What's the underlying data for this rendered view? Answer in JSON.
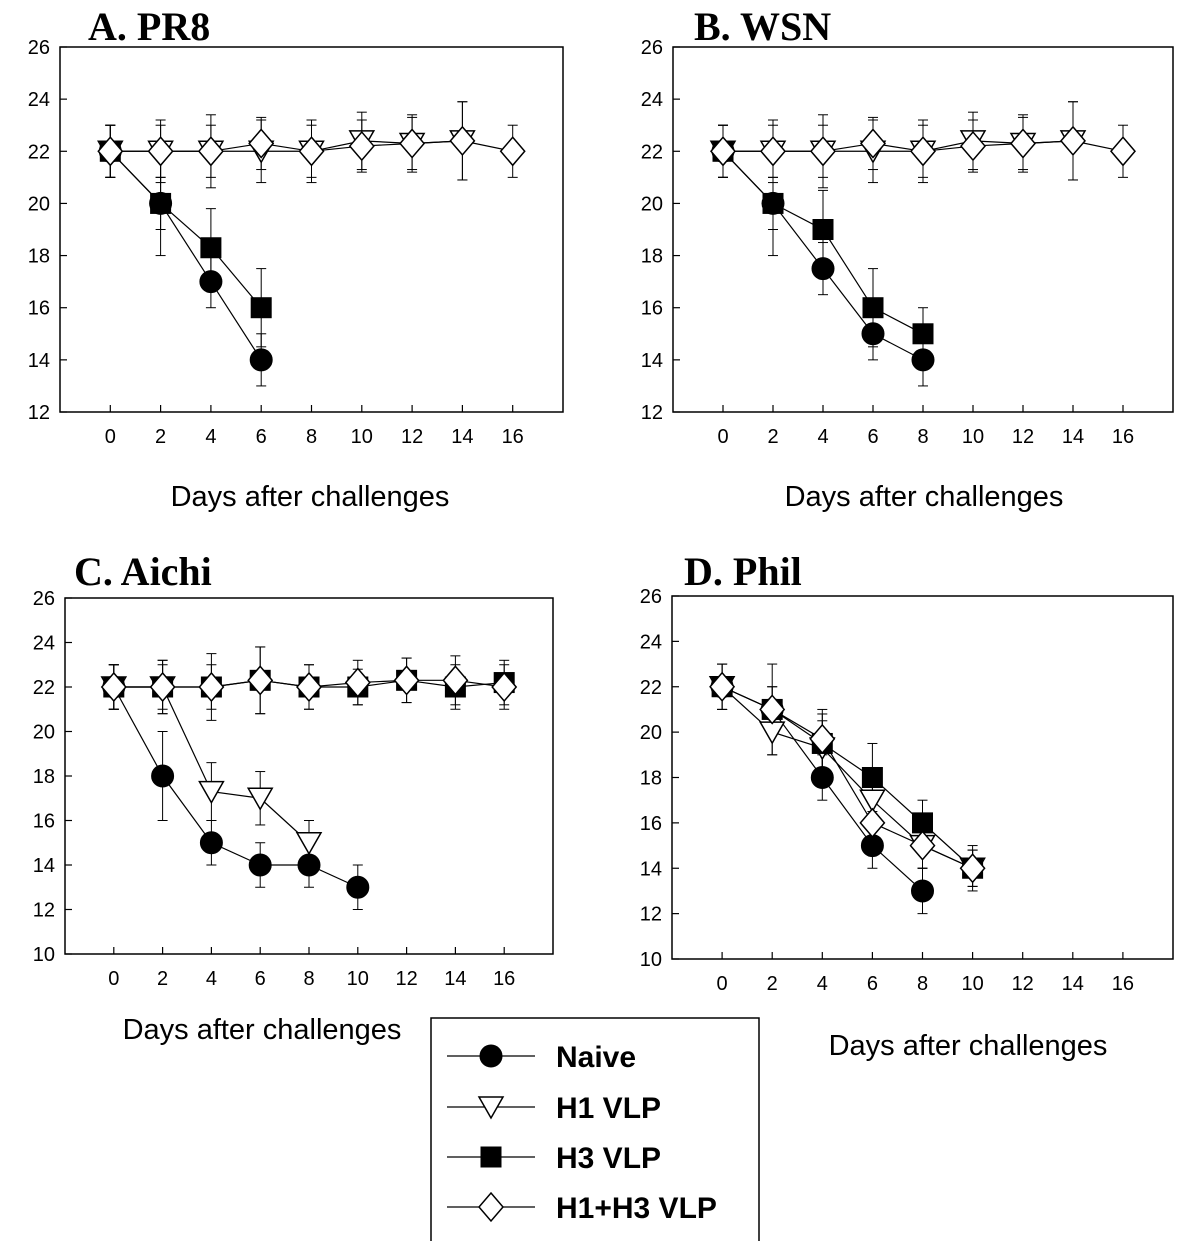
{
  "chart_data": [
    {
      "type": "line",
      "title": "A. PR8",
      "xlabel": "Days after challenges",
      "ylabel": "",
      "x_ticks": [
        0,
        2,
        4,
        6,
        8,
        10,
        12,
        14,
        16
      ],
      "y_ticks": [
        12,
        14,
        16,
        18,
        20,
        22,
        24,
        26
      ],
      "xlim": [
        -2,
        18
      ],
      "ylim": [
        12,
        26
      ],
      "series": [
        {
          "name": "Naive",
          "marker": "circle",
          "x": [
            0,
            2,
            4,
            6
          ],
          "y": [
            22,
            20,
            17,
            14
          ],
          "err": [
            1,
            2,
            1,
            1
          ]
        },
        {
          "name": "H1 VLP",
          "marker": "triangle-down",
          "x": [
            0,
            2,
            4,
            6,
            8,
            10,
            12,
            14
          ],
          "y": [
            22,
            22,
            22,
            22,
            22,
            22.4,
            22.3,
            22.4
          ],
          "err": [
            1,
            1.2,
            1.4,
            1.2,
            1.2,
            1.1,
            1.1,
            1.5
          ]
        },
        {
          "name": "H3 VLP",
          "marker": "square",
          "x": [
            0,
            2,
            4,
            6
          ],
          "y": [
            22,
            20,
            18.3,
            16
          ],
          "err": [
            1,
            1,
            1.5,
            1.5
          ]
        },
        {
          "name": "H1+H3 VLP",
          "marker": "diamond",
          "x": [
            0,
            2,
            4,
            6,
            8,
            10,
            12,
            14,
            16
          ],
          "y": [
            22,
            22,
            22,
            22.3,
            22,
            22.2,
            22.3,
            22.4,
            22
          ],
          "err": [
            1,
            1,
            1,
            1,
            1,
            1,
            1,
            1.5,
            1
          ]
        }
      ]
    },
    {
      "type": "line",
      "title": "B. WSN",
      "xlabel": "Days after challenges",
      "ylabel": "",
      "x_ticks": [
        0,
        2,
        4,
        6,
        8,
        10,
        12,
        14,
        16
      ],
      "y_ticks": [
        12,
        14,
        16,
        18,
        20,
        22,
        24,
        26
      ],
      "xlim": [
        -2,
        18
      ],
      "ylim": [
        12,
        26
      ],
      "series": [
        {
          "name": "Naive",
          "marker": "circle",
          "x": [
            0,
            2,
            4,
            6,
            8
          ],
          "y": [
            22,
            20,
            17.5,
            15,
            14
          ],
          "err": [
            1,
            2,
            1,
            1,
            1
          ]
        },
        {
          "name": "H1 VLP",
          "marker": "triangle-down",
          "x": [
            0,
            2,
            4,
            6,
            8,
            10,
            12,
            14
          ],
          "y": [
            22,
            22,
            22,
            22,
            22,
            22.4,
            22.3,
            22.4
          ],
          "err": [
            1,
            1.2,
            1.4,
            1.2,
            1.2,
            1.1,
            1.1,
            1.5
          ]
        },
        {
          "name": "H3 VLP",
          "marker": "square",
          "x": [
            0,
            2,
            4,
            6,
            8
          ],
          "y": [
            22,
            20,
            19,
            16,
            15
          ],
          "err": [
            1,
            1,
            1.5,
            1.5,
            1
          ]
        },
        {
          "name": "H1+H3 VLP",
          "marker": "diamond",
          "x": [
            0,
            2,
            4,
            6,
            8,
            10,
            12,
            14,
            16
          ],
          "y": [
            22,
            22,
            22,
            22.3,
            22,
            22.2,
            22.3,
            22.4,
            22
          ],
          "err": [
            1,
            1,
            1,
            1,
            1,
            1,
            1,
            1.5,
            1
          ]
        }
      ]
    },
    {
      "type": "line",
      "title": "C. Aichi",
      "xlabel": "Days after challenges",
      "ylabel": "",
      "x_ticks": [
        0,
        2,
        4,
        6,
        8,
        10,
        12,
        14,
        16
      ],
      "y_ticks": [
        10,
        12,
        14,
        16,
        18,
        20,
        22,
        24,
        26
      ],
      "xlim": [
        -2,
        18
      ],
      "ylim": [
        10,
        26
      ],
      "series": [
        {
          "name": "Naive",
          "marker": "circle",
          "x": [
            0,
            2,
            4,
            6,
            8,
            10
          ],
          "y": [
            22,
            18,
            15,
            14,
            14,
            13
          ],
          "err": [
            1,
            2,
            1,
            1,
            1,
            1
          ]
        },
        {
          "name": "H1 VLP",
          "marker": "triangle-down",
          "x": [
            0,
            2,
            4,
            6,
            8
          ],
          "y": [
            22,
            22,
            17.3,
            17,
            15
          ],
          "err": [
            1,
            1.2,
            1.3,
            1.2,
            1
          ]
        },
        {
          "name": "H3 VLP",
          "marker": "square",
          "x": [
            0,
            2,
            4,
            6,
            8,
            10,
            12,
            14,
            16
          ],
          "y": [
            22,
            22,
            22,
            22.3,
            22,
            22,
            22.3,
            22,
            22.2
          ],
          "err": [
            1,
            1,
            1,
            1.5,
            1,
            0.8,
            1,
            1,
            1
          ]
        },
        {
          "name": "H1+H3 VLP",
          "marker": "diamond",
          "x": [
            0,
            2,
            4,
            6,
            8,
            10,
            12,
            14,
            16
          ],
          "y": [
            22,
            22,
            22,
            22.3,
            22,
            22.2,
            22.3,
            22.3,
            22
          ],
          "err": [
            1,
            1.2,
            1.5,
            1.5,
            1,
            1,
            1,
            1.1,
            1
          ]
        }
      ]
    },
    {
      "type": "line",
      "title": "D. Phil",
      "xlabel": "Days after challenges",
      "ylabel": "",
      "x_ticks": [
        0,
        2,
        4,
        6,
        8,
        10,
        12,
        14,
        16
      ],
      "y_ticks": [
        10,
        12,
        14,
        16,
        18,
        20,
        22,
        24,
        26
      ],
      "xlim": [
        -2,
        18
      ],
      "ylim": [
        10,
        26
      ],
      "series": [
        {
          "name": "Naive",
          "marker": "circle",
          "x": [
            0,
            2,
            4,
            6,
            8
          ],
          "y": [
            22,
            21,
            18,
            15,
            13
          ],
          "err": [
            1,
            1,
            1,
            1,
            1
          ]
        },
        {
          "name": "H1 VLP",
          "marker": "triangle-down",
          "x": [
            0,
            2,
            4,
            6,
            8,
            10
          ],
          "y": [
            22,
            20,
            19.3,
            17,
            15,
            14
          ],
          "err": [
            1,
            1,
            1.2,
            1,
            1,
            0.8
          ]
        },
        {
          "name": "H3 VLP",
          "marker": "square",
          "x": [
            0,
            2,
            4,
            6,
            8,
            10
          ],
          "y": [
            22,
            21,
            19.5,
            18,
            16,
            14
          ],
          "err": [
            1,
            2,
            1.3,
            1.5,
            1,
            1
          ]
        },
        {
          "name": "H1+H3 VLP",
          "marker": "diamond",
          "x": [
            0,
            2,
            4,
            6,
            8,
            10
          ],
          "y": [
            22,
            21,
            19.7,
            16,
            15,
            14
          ],
          "err": [
            1,
            1,
            1.3,
            1,
            1,
            0.8
          ]
        }
      ]
    }
  ],
  "legend": {
    "entries": [
      {
        "label": "Naive",
        "marker": "circle"
      },
      {
        "label": "H1 VLP",
        "marker": "triangle-down"
      },
      {
        "label": "H3 VLP",
        "marker": "square"
      },
      {
        "label": "H1+H3 VLP",
        "marker": "diamond"
      }
    ]
  }
}
